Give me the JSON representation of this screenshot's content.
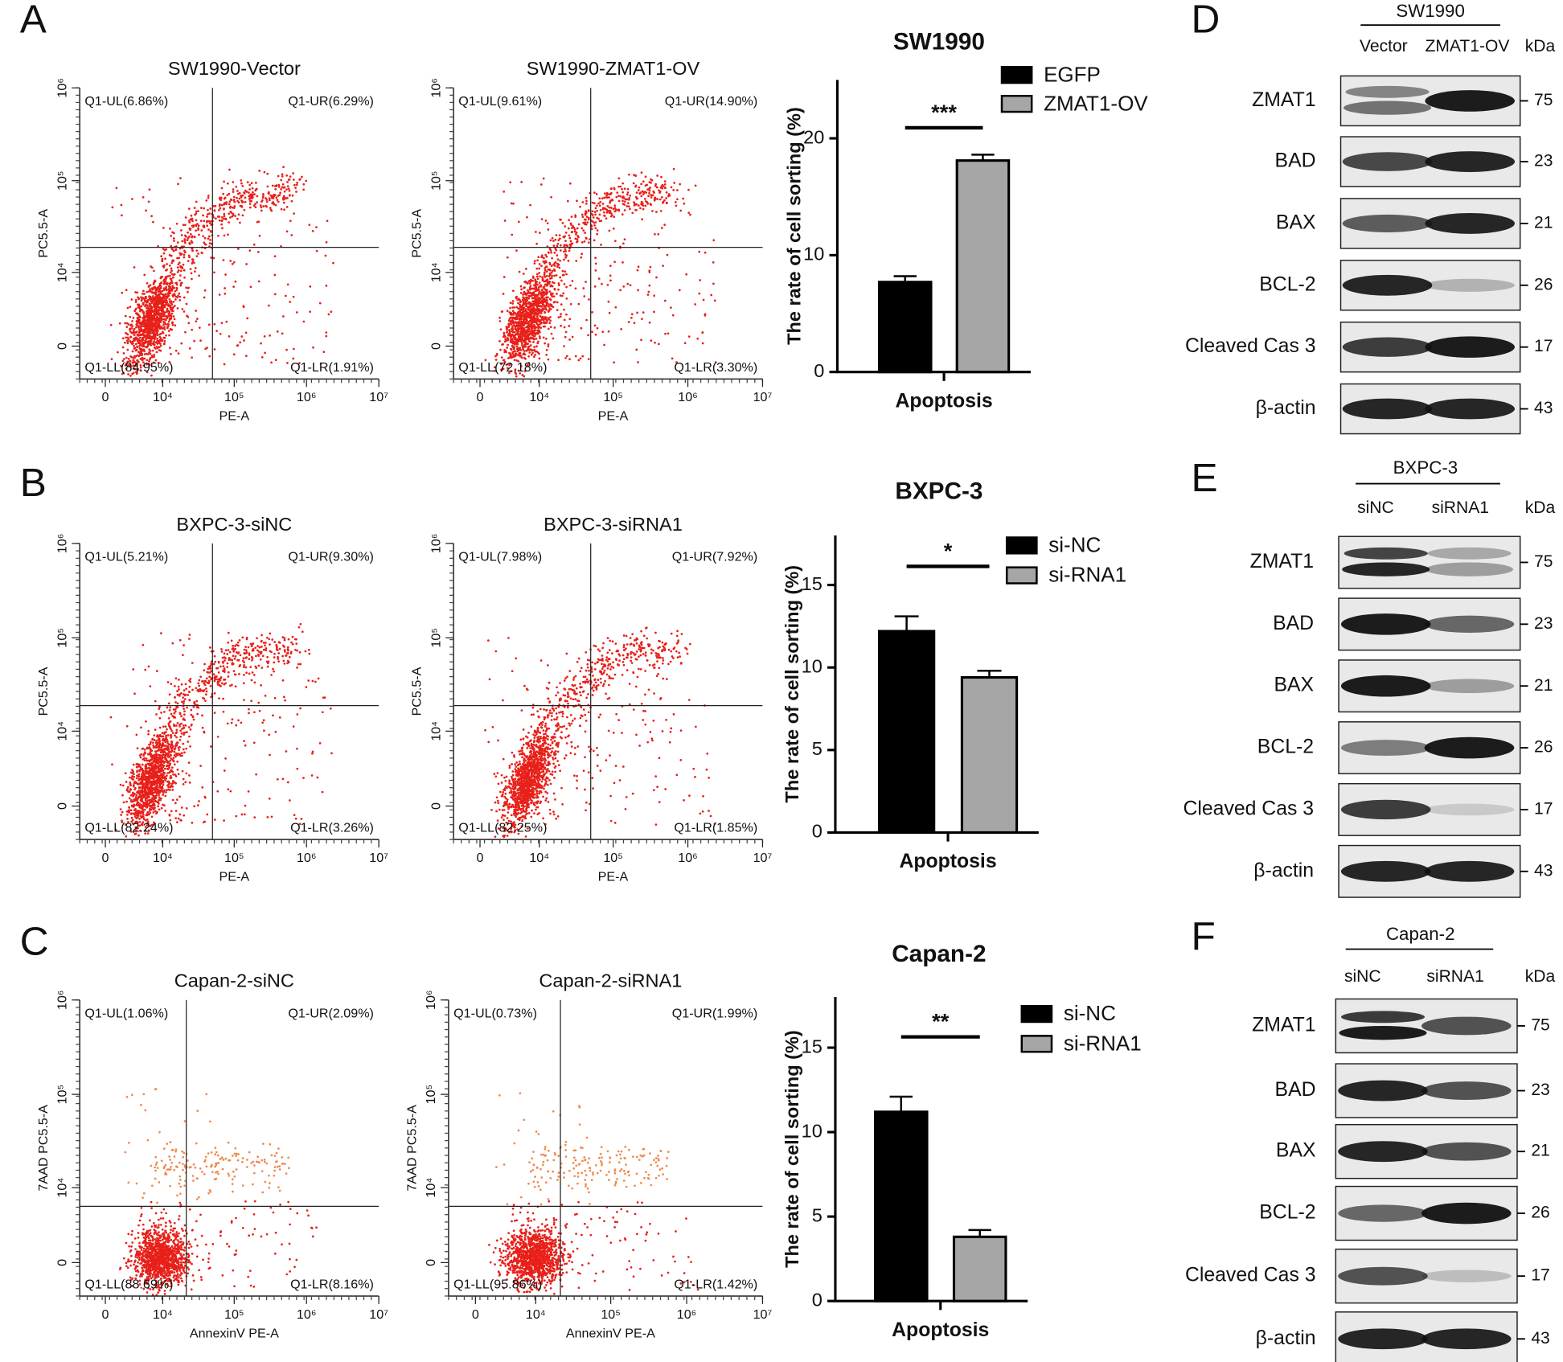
{
  "panels": [
    "A",
    "B",
    "C",
    "D",
    "E",
    "F"
  ],
  "chart_data": [
    {
      "type": "flow",
      "title": "SW1990-Vector",
      "xlabel": "PE-A",
      "ylabel": "PC5.5-A",
      "xscale": "asinh",
      "yscale": "asinh",
      "xlim": [
        -3000,
        10000000
      ],
      "ylim": [
        -3000,
        1000000
      ],
      "xticks": [
        0,
        {
          "value": 10000,
          "label": "10⁴"
        },
        {
          "value": 100000,
          "label": "10⁵"
        },
        {
          "value": 1000000,
          "label": "10⁶"
        },
        {
          "value": 10000000,
          "label": "10⁷"
        }
      ],
      "yticks": [
        0,
        {
          "value": 10000,
          "label": "10⁴"
        },
        {
          "value": 100000,
          "label": "10⁵"
        },
        {
          "value": 1000000,
          "label": "10⁶"
        }
      ],
      "gate": {
        "x": 50000,
        "y": 19000
      },
      "quadrants": {
        "UL": "Q1-UL(6.86%)",
        "UR": "Q1-UR(6.29%)",
        "LL": "Q1-LL(84.95%)",
        "LR": "Q1-LR(1.91%)"
      },
      "color": "#e8201a"
    },
    {
      "type": "flow",
      "title": "SW1990-ZMAT1-OV",
      "xlabel": "PE-A",
      "ylabel": "PC5.5-A",
      "xscale": "asinh",
      "yscale": "asinh",
      "xlim": [
        -3000,
        10000000
      ],
      "ylim": [
        -3000,
        1000000
      ],
      "xticks": [
        0,
        {
          "value": 10000,
          "label": "10⁴"
        },
        {
          "value": 100000,
          "label": "10⁵"
        },
        {
          "value": 1000000,
          "label": "10⁶"
        },
        {
          "value": 10000000,
          "label": "10⁷"
        }
      ],
      "yticks": [
        0,
        {
          "value": 10000,
          "label": "10⁴"
        },
        {
          "value": 100000,
          "label": "10⁵"
        },
        {
          "value": 1000000,
          "label": "10⁶"
        }
      ],
      "gate": {
        "x": 50000,
        "y": 19000
      },
      "quadrants": {
        "UL": "Q1-UL(9.61%)",
        "UR": "Q1-UR(14.90%)",
        "LL": "Q1-LL(72.18%)",
        "LR": "Q1-LR(3.30%)"
      },
      "color": "#e8201a"
    },
    {
      "type": "flow",
      "title": "BXPC-3-siNC",
      "xlabel": "PE-A",
      "ylabel": "PC5.5-A",
      "xscale": "asinh",
      "yscale": "asinh",
      "xlim": [
        -3000,
        10000000
      ],
      "ylim": [
        -3000,
        1000000
      ],
      "xticks": [
        0,
        {
          "value": 10000,
          "label": "10⁴"
        },
        {
          "value": 100000,
          "label": "10⁵"
        },
        {
          "value": 1000000,
          "label": "10⁶"
        },
        {
          "value": 10000000,
          "label": "10⁷"
        }
      ],
      "yticks": [
        0,
        {
          "value": 10000,
          "label": "10⁴"
        },
        {
          "value": 100000,
          "label": "10⁵"
        },
        {
          "value": 1000000,
          "label": "10⁶"
        }
      ],
      "gate": {
        "x": 50000,
        "y": 19000
      },
      "quadrants": {
        "UL": "Q1-UL(5.21%)",
        "UR": "Q1-UR(9.30%)",
        "LL": "Q1-LL(82.24%)",
        "LR": "Q1-LR(3.26%)"
      },
      "color": "#e8201a"
    },
    {
      "type": "flow",
      "title": "BXPC-3-siRNA1",
      "xlabel": "PE-A",
      "ylabel": "PC5.5-A",
      "xscale": "asinh",
      "yscale": "asinh",
      "xlim": [
        -3000,
        10000000
      ],
      "ylim": [
        -3000,
        1000000
      ],
      "xticks": [
        0,
        {
          "value": 10000,
          "label": "10⁴"
        },
        {
          "value": 100000,
          "label": "10⁵"
        },
        {
          "value": 1000000,
          "label": "10⁶"
        },
        {
          "value": 10000000,
          "label": "10⁷"
        }
      ],
      "yticks": [
        0,
        {
          "value": 10000,
          "label": "10⁴"
        },
        {
          "value": 100000,
          "label": "10⁵"
        },
        {
          "value": 1000000,
          "label": "10⁶"
        }
      ],
      "gate": {
        "x": 50000,
        "y": 19000
      },
      "quadrants": {
        "UL": "Q1-UL(7.98%)",
        "UR": "Q1-UR(7.92%)",
        "LL": "Q1-LL(82.25%)",
        "LR": "Q1-LR(1.85%)"
      },
      "color": "#e8201a"
    },
    {
      "type": "flow",
      "title": "Capan-2-siNC",
      "xlabel": "AnnexinV PE-A",
      "ylabel": "7AAD PC5.5-A",
      "xscale": "asinh",
      "yscale": "asinh",
      "xlim": [
        -3000,
        10000000
      ],
      "ylim": [
        -3000,
        1000000
      ],
      "xticks": [
        0,
        {
          "value": 10000,
          "label": "10⁴"
        },
        {
          "value": 100000,
          "label": "10⁵"
        },
        {
          "value": 1000000,
          "label": "10⁶"
        },
        {
          "value": 10000000,
          "label": "10⁷"
        }
      ],
      "yticks": [
        0,
        {
          "value": 10000,
          "label": "10⁴"
        },
        {
          "value": 100000,
          "label": "10⁵"
        },
        {
          "value": 1000000,
          "label": "10⁶"
        }
      ],
      "gate": {
        "x": 21600,
        "y": 6100
      },
      "quadrants": {
        "UL": "Q1-UL(1.06%)",
        "UR": "Q1-UR(2.09%)",
        "LL": "Q1-LL(88.69%)",
        "LR": "Q1-LR(8.16%)"
      },
      "color": "#e8201a",
      "upper_color": "#f08a50"
    },
    {
      "type": "flow",
      "title": "Capan-2-siRNA1",
      "xlabel": "AnnexinV PE-A",
      "ylabel": "7AAD PC5.5-A",
      "xscale": "asinh",
      "yscale": "asinh",
      "xlim": [
        -3000,
        10000000
      ],
      "ylim": [
        -3000,
        1000000
      ],
      "xticks": [
        0,
        {
          "value": 10000,
          "label": "10⁴"
        },
        {
          "value": 100000,
          "label": "10⁵"
        },
        {
          "value": 1000000,
          "label": "10⁶"
        },
        {
          "value": 10000000,
          "label": "10⁷"
        }
      ],
      "yticks": [
        0,
        {
          "value": 10000,
          "label": "10⁴"
        },
        {
          "value": 100000,
          "label": "10⁵"
        },
        {
          "value": 1000000,
          "label": "10⁶"
        }
      ],
      "gate": {
        "x": 21600,
        "y": 6100
      },
      "quadrants": {
        "UL": "Q1-UL(0.73%)",
        "UR": "Q1-UR(1.99%)",
        "LL": "Q1-LL(95.86%)",
        "LR": "Q1-LR(1.42%)"
      },
      "color": "#e8201a",
      "upper_color": "#f08a50"
    },
    {
      "type": "bar",
      "title": "SW1990",
      "categories": [
        "Apoptosis"
      ],
      "ylabel": "The rate of cell sorting (%)",
      "ylim": [
        0,
        25
      ],
      "yticks": [
        0,
        10,
        20
      ],
      "annotations": [
        "***"
      ],
      "series": [
        {
          "name": "EGFP",
          "color": "#000000",
          "values": [
            7.7
          ],
          "errors": [
            0.5
          ]
        },
        {
          "name": "ZMAT1-OV",
          "color": "#a6a6a6",
          "values": [
            18.1
          ],
          "errors": [
            0.5
          ]
        }
      ]
    },
    {
      "type": "bar",
      "title": "BXPC-3",
      "categories": [
        "Apoptosis"
      ],
      "ylabel": "The rate of cell sorting (%)",
      "ylim": [
        0,
        18
      ],
      "yticks": [
        0,
        5,
        10,
        15
      ],
      "annotations": [
        "*"
      ],
      "series": [
        {
          "name": "si-NC",
          "color": "#000000",
          "values": [
            12.2
          ],
          "errors": [
            0.9
          ]
        },
        {
          "name": "si-RNA1",
          "color": "#a6a6a6",
          "values": [
            9.4
          ],
          "errors": [
            0.4
          ]
        }
      ]
    },
    {
      "type": "bar",
      "title": "Capan-2",
      "categories": [
        "Apoptosis"
      ],
      "ylabel": "The rate of cell sorting (%)",
      "ylim": [
        0,
        18
      ],
      "yticks": [
        0,
        5,
        10,
        15
      ],
      "annotations": [
        "**"
      ],
      "series": [
        {
          "name": "si-NC",
          "color": "#000000",
          "values": [
            11.2
          ],
          "errors": [
            0.9
          ]
        },
        {
          "name": "si-RNA1",
          "color": "#a6a6a6",
          "values": [
            3.8
          ],
          "errors": [
            0.4
          ]
        }
      ]
    }
  ],
  "blots": [
    {
      "title": "SW1990",
      "lanes": [
        "Vector",
        "ZMAT1-OV"
      ],
      "unit": "kDa",
      "rows": [
        {
          "label": "ZMAT1",
          "kda": 75
        },
        {
          "label": "BAD",
          "kda": 23
        },
        {
          "label": "BAX",
          "kda": 21
        },
        {
          "label": "BCL-2",
          "kda": 26
        },
        {
          "label": "Cleaved Cas 3",
          "kda": 17
        },
        {
          "label": "β-actin",
          "kda": 43
        }
      ]
    },
    {
      "title": "BXPC-3",
      "lanes": [
        "siNC",
        "siRNA1"
      ],
      "unit": "kDa",
      "rows": [
        {
          "label": "ZMAT1",
          "kda": 75
        },
        {
          "label": "BAD",
          "kda": 23
        },
        {
          "label": "BAX",
          "kda": 21
        },
        {
          "label": "BCL-2",
          "kda": 26
        },
        {
          "label": "Cleaved Cas 3",
          "kda": 17
        },
        {
          "label": "β-actin",
          "kda": 43
        }
      ]
    },
    {
      "title": "Capan-2",
      "lanes": [
        "siNC",
        "siRNA1"
      ],
      "unit": "kDa",
      "rows": [
        {
          "label": "ZMAT1",
          "kda": 75
        },
        {
          "label": "BAD",
          "kda": 23
        },
        {
          "label": "BAX",
          "kda": 21
        },
        {
          "label": "BCL-2",
          "kda": 26
        },
        {
          "label": "Cleaved Cas 3",
          "kda": 17
        },
        {
          "label": "β-actin",
          "kda": 43
        }
      ]
    }
  ]
}
